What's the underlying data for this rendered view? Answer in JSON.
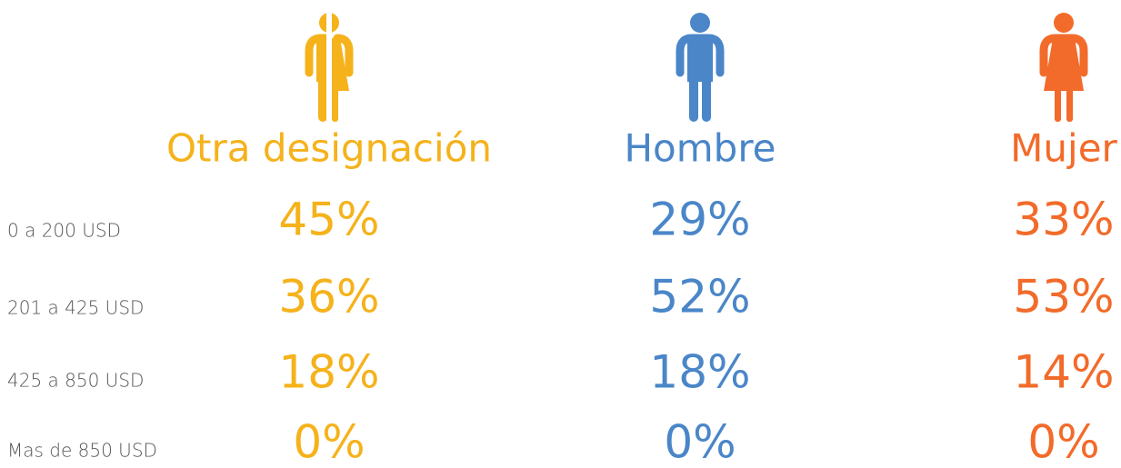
{
  "rows": [
    "0 a 200 USD",
    "201 a 425 USD",
    "425 a 850 USD",
    "Mas de 850 USD"
  ],
  "columns": [
    {
      "name": "Otra designación",
      "values": [
        "45%",
        "36%",
        "18%",
        "0%"
      ]
    },
    {
      "name": "Hombre",
      "values": [
        "29%",
        "52%",
        "18%",
        "0%"
      ]
    },
    {
      "name": "Mujer",
      "values": [
        "33%",
        "53%",
        "14%",
        "0%"
      ]
    }
  ]
}
